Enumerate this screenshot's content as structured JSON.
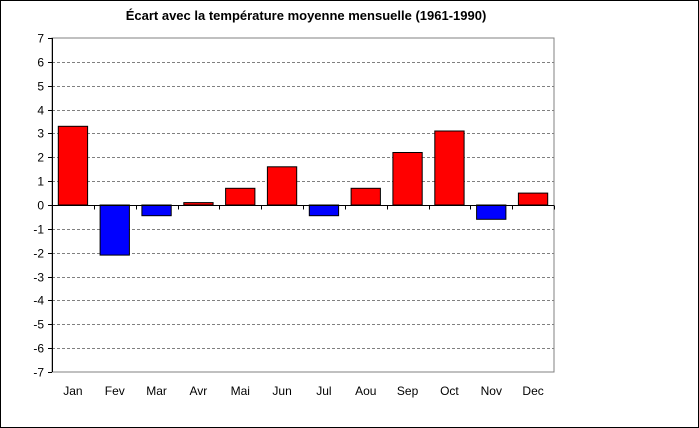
{
  "chart_data": {
    "type": "bar",
    "title": "Écart avec la température moyenne mensuelle (1961-1990)",
    "categories": [
      "Jan",
      "Fev",
      "Mar",
      "Avr",
      "Mai",
      "Jun",
      "Jul",
      "Aou",
      "Sep",
      "Oct",
      "Nov",
      "Dec"
    ],
    "values": [
      3.3,
      -2.1,
      -0.45,
      0.1,
      0.7,
      1.6,
      -0.45,
      0.7,
      2.2,
      3.1,
      -0.6,
      0.5
    ],
    "ylim": [
      -7,
      7
    ],
    "yticks": [
      7,
      6,
      5,
      4,
      3,
      2,
      1,
      0,
      -1,
      -2,
      -3,
      -4,
      -5,
      -6,
      -7
    ],
    "xlabel": "",
    "ylabel": "",
    "grid": true,
    "legend": "none",
    "colors": {
      "positive": "#ff0000",
      "negative": "#0000ff",
      "gridline": "#808080",
      "axis": "#000000",
      "background": "#ffffff"
    }
  }
}
